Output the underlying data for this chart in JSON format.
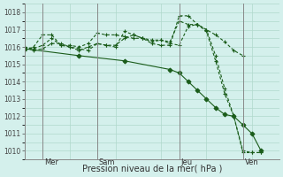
{
  "xlabel": "Pression niveau de la mer( hPa )",
  "bg_color": "#d4f0ec",
  "grid_color": "#b0d8cc",
  "line_color": "#1a5c1a",
  "ylim": [
    1009.5,
    1018.5
  ],
  "xlim": [
    0,
    14
  ],
  "day_positions": [
    1,
    4,
    8.5,
    12
  ],
  "day_labels": [
    "Mer",
    "Sam",
    "Jeu",
    "Ven"
  ],
  "lines": [
    {
      "x": [
        0,
        0.5,
        1,
        1.5,
        2,
        2.5,
        3,
        3.5,
        4,
        4.5,
        5,
        5.5,
        6,
        6.5,
        7,
        7.5,
        8,
        8.5,
        9,
        9.5,
        10,
        10.5,
        11,
        11.5,
        12,
        12.5,
        13
      ],
      "y": [
        1015.8,
        1016.0,
        1016.7,
        1016.7,
        1016.1,
        1016.0,
        1015.9,
        1015.8,
        1016.2,
        1016.1,
        1016.1,
        1016.5,
        1016.7,
        1016.5,
        1016.2,
        1016.1,
        1016.1,
        1017.8,
        1017.8,
        1017.3,
        1017.0,
        1015.5,
        1013.6,
        1012.0,
        1010.0,
        1009.9,
        1009.9
      ],
      "style": "dashed_marker"
    },
    {
      "x": [
        0,
        0.5,
        1,
        1.5,
        2,
        2.5,
        3,
        3.5,
        4,
        4.5,
        5,
        5.5,
        6,
        6.5,
        7,
        7.5,
        8,
        8.5,
        9,
        9.5,
        10,
        10.5,
        11,
        11.5,
        12,
        12.5,
        13
      ],
      "y": [
        1016.0,
        1015.8,
        1015.9,
        1016.2,
        1016.2,
        1016.0,
        1015.8,
        1016.0,
        1016.2,
        1016.1,
        1016.0,
        1016.9,
        1016.7,
        1016.5,
        1016.3,
        1016.4,
        1016.2,
        1016.1,
        1017.2,
        1017.3,
        1016.9,
        1015.2,
        1013.3,
        1012.0,
        1009.9,
        1009.9,
        1009.9
      ],
      "style": "dashed_marker"
    },
    {
      "x": [
        0,
        0.5,
        1,
        1.5,
        2,
        2.5,
        3,
        3.5,
        4,
        4.5,
        5,
        5.5,
        6,
        6.5,
        7,
        7.5,
        8,
        8.5,
        9,
        9.5,
        10,
        10.5,
        11,
        11.5,
        12
      ],
      "y": [
        1016.0,
        1015.9,
        1016.1,
        1016.5,
        1016.1,
        1016.1,
        1016.0,
        1016.2,
        1016.8,
        1016.7,
        1016.7,
        1016.6,
        1016.5,
        1016.5,
        1016.4,
        1016.4,
        1016.3,
        1017.5,
        1017.3,
        1017.3,
        1017.0,
        1016.7,
        1016.3,
        1015.8,
        1015.5
      ],
      "style": "dashed_marker"
    },
    {
      "x": [
        0,
        3,
        5.5,
        8,
        8.5,
        9,
        9.5,
        10,
        10.5,
        11,
        11.5,
        12,
        12.5,
        13
      ],
      "y": [
        1015.9,
        1015.5,
        1015.2,
        1014.7,
        1014.5,
        1014.0,
        1013.5,
        1013.0,
        1012.5,
        1012.1,
        1012.0,
        1011.5,
        1011.0,
        1010.0
      ],
      "style": "solid_marker"
    }
  ]
}
